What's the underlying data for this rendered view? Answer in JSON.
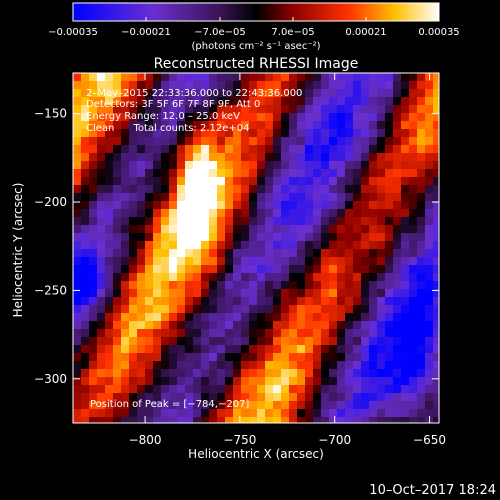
{
  "chart_data": {
    "type": "heatmap",
    "title": "Reconstructed RHESSI Image",
    "xlabel": "Heliocentric X (arcsec)",
    "ylabel": "Heliocentric Y (arcsec)",
    "xlim": [
      -838,
      -645
    ],
    "ylim": [
      -325,
      -127
    ],
    "x_ticks": [
      -800,
      -750,
      -700,
      -650
    ],
    "y_ticks": [
      -150,
      -200,
      -250,
      -300
    ],
    "x_tick_labels": [
      "−800",
      "−750",
      "−700",
      "−650"
    ],
    "y_tick_labels": [
      "−150",
      "−200",
      "−250",
      "−300"
    ],
    "colorbar": {
      "range": [
        -0.00035,
        0.00035
      ],
      "tick_labels": [
        "−0.00035",
        "−0.00021",
        "−7.0e−05",
        "7.0e−05",
        "0.00021",
        "0.00035"
      ],
      "unit_label": "(photons cm⁻² s⁻¹ asec⁻²)",
      "colors": [
        "#0000ff",
        "#6a2fd0",
        "#3a1456",
        "#000000",
        "#8a0000",
        "#ff3000",
        "#ffc000",
        "#ffffff"
      ]
    },
    "annotations": [
      "2–May–2015 22:33:36.000 to 22:43:36.000",
      "Detectors: 3F 5F 6F 7F 8F 9F, Att 0",
      "Energy Range: 12.0 – 25.0 keV",
      "Clean      Total counts: 2.12e+04",
      "Position of Peak = [−784,−207]"
    ],
    "peak": [
      -784,
      -207
    ],
    "grid": false
  },
  "footer": {
    "timestamp": "10–Oct–2017 18:24"
  }
}
